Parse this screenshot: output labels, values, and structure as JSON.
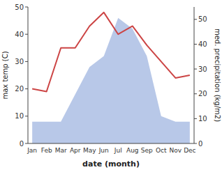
{
  "chart_data": {
    "type": "line",
    "xlabel": "date (month)",
    "ylabel": "max temp (C)",
    "y2label": "med. precipitation (kg/m2)",
    "categories": [
      "Jan",
      "Feb",
      "Mar",
      "Apr",
      "May",
      "Jun",
      "Jul",
      "Aug",
      "Sep",
      "Oct",
      "Nov",
      "Dec"
    ],
    "series": [
      {
        "type": "area",
        "color": "#b8c8e8",
        "values": [
          8,
          8,
          8,
          18,
          28,
          32,
          46,
          42,
          32,
          10,
          8,
          8
        ]
      },
      {
        "type": "line",
        "color": "#cc4444",
        "values": [
          20,
          19,
          35,
          35,
          43,
          48,
          40,
          43,
          36,
          30,
          24,
          25
        ]
      }
    ],
    "ylim": [
      0,
      50
    ],
    "yticks": [
      0,
      10,
      20,
      30,
      40,
      50
    ],
    "y2lim": [
      0,
      55
    ],
    "y2ticks": [
      0,
      10,
      20,
      30,
      40,
      50
    ],
    "grid": false
  }
}
